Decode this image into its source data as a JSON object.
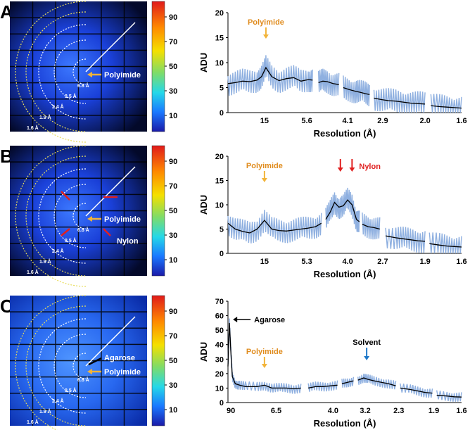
{
  "colorbar": {
    "ticks": [
      "90",
      "70",
      "50",
      "30",
      "10"
    ]
  },
  "panels": [
    {
      "letter": "A",
      "detector": {
        "ring_labels": [
          "6.8 Å",
          "3.5 Å",
          "2.4 Å",
          "1.9 Å",
          "1.6 Å"
        ],
        "annotations": [
          {
            "text": "Polyimide",
            "arrow": "orange"
          }
        ]
      },
      "chart_data": {
        "type": "line",
        "ylabel": "ADU",
        "xlabel": "Resolution (Å)",
        "ylim": [
          0,
          20
        ],
        "yticks": [
          0,
          5,
          10,
          15,
          20
        ],
        "xticks": [
          "15",
          "5.6",
          "4.1",
          "2.9",
          "2.0",
          "1.6"
        ],
        "segments": [
          {
            "x": [
              0.0,
              0.05,
              0.1,
              0.15,
              0.2,
              0.23,
              0.26,
              0.3,
              0.35,
              0.4,
              0.45,
              0.5,
              0.55,
              0.58
            ],
            "y": [
              5.8,
              6.0,
              6.3,
              6.2,
              6.5,
              7.2,
              9.0,
              7.2,
              6.4,
              6.8,
              7.0,
              6.3,
              6.6,
              6.5
            ]
          },
          {
            "x": [
              0.62,
              0.65,
              0.68,
              0.72,
              0.76
            ],
            "y": [
              6.0,
              6.3,
              6.2,
              5.8,
              5.6
            ]
          },
          {
            "x": [
              0.79,
              0.83,
              0.87,
              0.9,
              0.94,
              0.97
            ],
            "y": [
              5.0,
              4.6,
              4.3,
              4.1,
              3.8,
              3.6
            ]
          },
          {
            "x": [
              1.0,
              1.05,
              1.1,
              1.15,
              1.2,
              1.25,
              1.3,
              1.35
            ],
            "y": [
              2.9,
              2.6,
              2.4,
              2.3,
              2.1,
              1.9,
              1.8,
              1.7
            ]
          },
          {
            "x": [
              1.39,
              1.45,
              1.5,
              1.55,
              1.6
            ],
            "y": [
              1.4,
              1.2,
              1.1,
              1.0,
              0.9
            ]
          }
        ],
        "annotations": [
          {
            "text": "Polyimide",
            "color": "#e08c1e",
            "arrow_color": "#f2b43a",
            "x": 0.26
          }
        ]
      }
    },
    {
      "letter": "B",
      "detector": {
        "ring_labels": [
          "6.8 Å",
          "3.5 Å",
          "2.4 Å",
          "1.9 Å",
          "1.6 Å"
        ],
        "annotations": [
          {
            "text": "Polyimide",
            "arrow": "orange"
          },
          {
            "text": "Nylon",
            "arrow": "red"
          }
        ]
      },
      "chart_data": {
        "type": "line",
        "ylabel": "ADU",
        "xlabel": "Resolution (Å)",
        "ylim": [
          0,
          20
        ],
        "yticks": [
          0,
          5,
          10,
          15,
          20
        ],
        "xticks": [
          "15",
          "5.3",
          "4.0",
          "2.7",
          "1.9",
          "1.6"
        ],
        "segments": [
          {
            "x": [
              0.0,
              0.05,
              0.1,
              0.15,
              0.2,
              0.25,
              0.3,
              0.35,
              0.4,
              0.45,
              0.5,
              0.55,
              0.6,
              0.64
            ],
            "y": [
              6.2,
              5.0,
              4.5,
              4.2,
              5.0,
              6.8,
              5.0,
              4.7,
              4.6,
              4.8,
              5.0,
              5.2,
              5.5,
              6.2
            ]
          },
          {
            "x": [
              0.67,
              0.7,
              0.73,
              0.76,
              0.79,
              0.82,
              0.85,
              0.88,
              0.9
            ],
            "y": [
              7.0,
              8.5,
              10.5,
              9.5,
              9.8,
              11.0,
              10.0,
              7.0,
              6.5
            ]
          },
          {
            "x": [
              0.92,
              0.96,
              1.0,
              1.04
            ],
            "y": [
              6.0,
              5.5,
              5.3,
              5.0
            ]
          },
          {
            "x": [
              1.08,
              1.15,
              1.2,
              1.25,
              1.3,
              1.35
            ],
            "y": [
              3.6,
              3.2,
              3.0,
              2.8,
              2.6,
              2.5
            ]
          },
          {
            "x": [
              1.38,
              1.45,
              1.5,
              1.55,
              1.6
            ],
            "y": [
              2.0,
              1.7,
              1.5,
              1.4,
              1.3
            ]
          }
        ],
        "annotations": [
          {
            "text": "Polyimide",
            "color": "#e08c1e",
            "arrow_color": "#f2b43a",
            "x": 0.25
          },
          {
            "text": "Nylon",
            "color": "#e02020",
            "arrow_color": "#e02020",
            "x": [
              0.77,
              0.85
            ]
          }
        ]
      }
    },
    {
      "letter": "C",
      "detector": {
        "ring_labels": [
          "6.8 Å",
          "3.5 Å",
          "2.4 Å",
          "1.9 Å",
          "1.6 Å"
        ],
        "annotations": [
          {
            "text": "Agarose",
            "arrow": "black"
          },
          {
            "text": "Polyimide",
            "arrow": "orange"
          }
        ]
      },
      "chart_data": {
        "type": "line",
        "ylabel": "ADU",
        "xlabel": "Resolution (Å)",
        "ylim": [
          0,
          70
        ],
        "yticks": [
          0,
          10,
          20,
          30,
          40,
          50,
          60,
          70
        ],
        "xticks": [
          "90",
          "6.5",
          "4.0",
          "3.2",
          "2.3",
          "1.9",
          "1.6"
        ],
        "segments": [
          {
            "x": [
              0.0,
              0.01,
              0.02,
              0.03,
              0.05,
              0.08,
              0.12,
              0.2,
              0.25,
              0.3,
              0.35,
              0.4,
              0.45,
              0.5
            ],
            "y": [
              25.0,
              55.0,
              35.0,
              18.0,
              13.0,
              12.0,
              11.0,
              11.0,
              12.0,
              10.0,
              10.0,
              10.0,
              9.5,
              10.0
            ]
          },
          {
            "x": [
              0.55,
              0.6,
              0.65,
              0.7,
              0.75
            ],
            "y": [
              10.0,
              11.0,
              11.0,
              11.5,
              12.0
            ]
          },
          {
            "x": [
              0.78,
              0.82,
              0.86
            ],
            "y": [
              13.0,
              14.0,
              15.0
            ]
          },
          {
            "x": [
              0.89,
              0.93,
              0.96,
              1.0,
              1.05,
              1.1,
              1.15
            ],
            "y": [
              15.5,
              17.0,
              16.0,
              15.0,
              14.0,
              13.0,
              11.5
            ]
          },
          {
            "x": [
              1.18,
              1.25,
              1.3,
              1.35,
              1.4
            ],
            "y": [
              10.0,
              9.0,
              8.0,
              7.0,
              6.5
            ]
          },
          {
            "x": [
              1.43,
              1.5,
              1.55,
              1.6
            ],
            "y": [
              5.0,
              4.5,
              4.0,
              3.8
            ]
          }
        ],
        "annotations": [
          {
            "text": "Agarose",
            "color": "#000000",
            "arrow_color": "#000000",
            "x": 0.02
          },
          {
            "text": "Polyimide",
            "color": "#e08c1e",
            "arrow_color": "#f2b43a",
            "x": 0.25
          },
          {
            "text": "Solvent",
            "color": "#000000",
            "arrow_color": "#1f78c8",
            "x": 0.95
          }
        ]
      }
    }
  ],
  "colors": {
    "series_mean": "#000000",
    "series_spread": "#8fb0e0",
    "ring_inner": "#ffffff",
    "ring_outer": "#e8dc5a"
  }
}
